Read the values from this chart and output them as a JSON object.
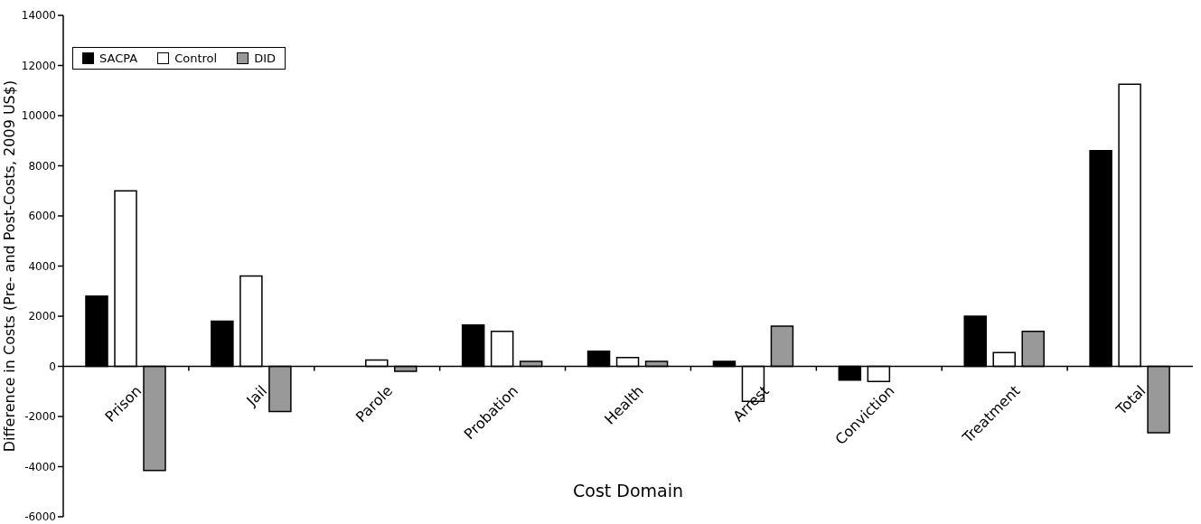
{
  "chart_data": {
    "type": "bar",
    "xlabel": "Cost Domain",
    "ylabel": "Difference in Costs (Pre- and Post-Costs, 2009 US$)",
    "categories": [
      "Prison",
      "Jail",
      "Parole",
      "Probation",
      "Health",
      "Arrest",
      "Conviction",
      "Treatment",
      "Total"
    ],
    "series": [
      {
        "name": "SACPA",
        "color": "#000000",
        "values": [
          2800,
          1800,
          0,
          1650,
          600,
          200,
          -550,
          2000,
          8600
        ]
      },
      {
        "name": "Control",
        "color": "#ffffff",
        "values": [
          7000,
          3600,
          250,
          1400,
          350,
          -1400,
          -600,
          550,
          11250
        ]
      },
      {
        "name": "DID",
        "color": "#999999",
        "values": [
          -4150,
          -1800,
          -200,
          200,
          200,
          1600,
          0,
          1400,
          -2650
        ]
      }
    ],
    "ylim": [
      -6000,
      14000
    ],
    "yticks": [
      -6000,
      -4000,
      -2000,
      0,
      2000,
      4000,
      6000,
      8000,
      10000,
      12000,
      14000
    ],
    "grid": false,
    "legend": "top left"
  }
}
